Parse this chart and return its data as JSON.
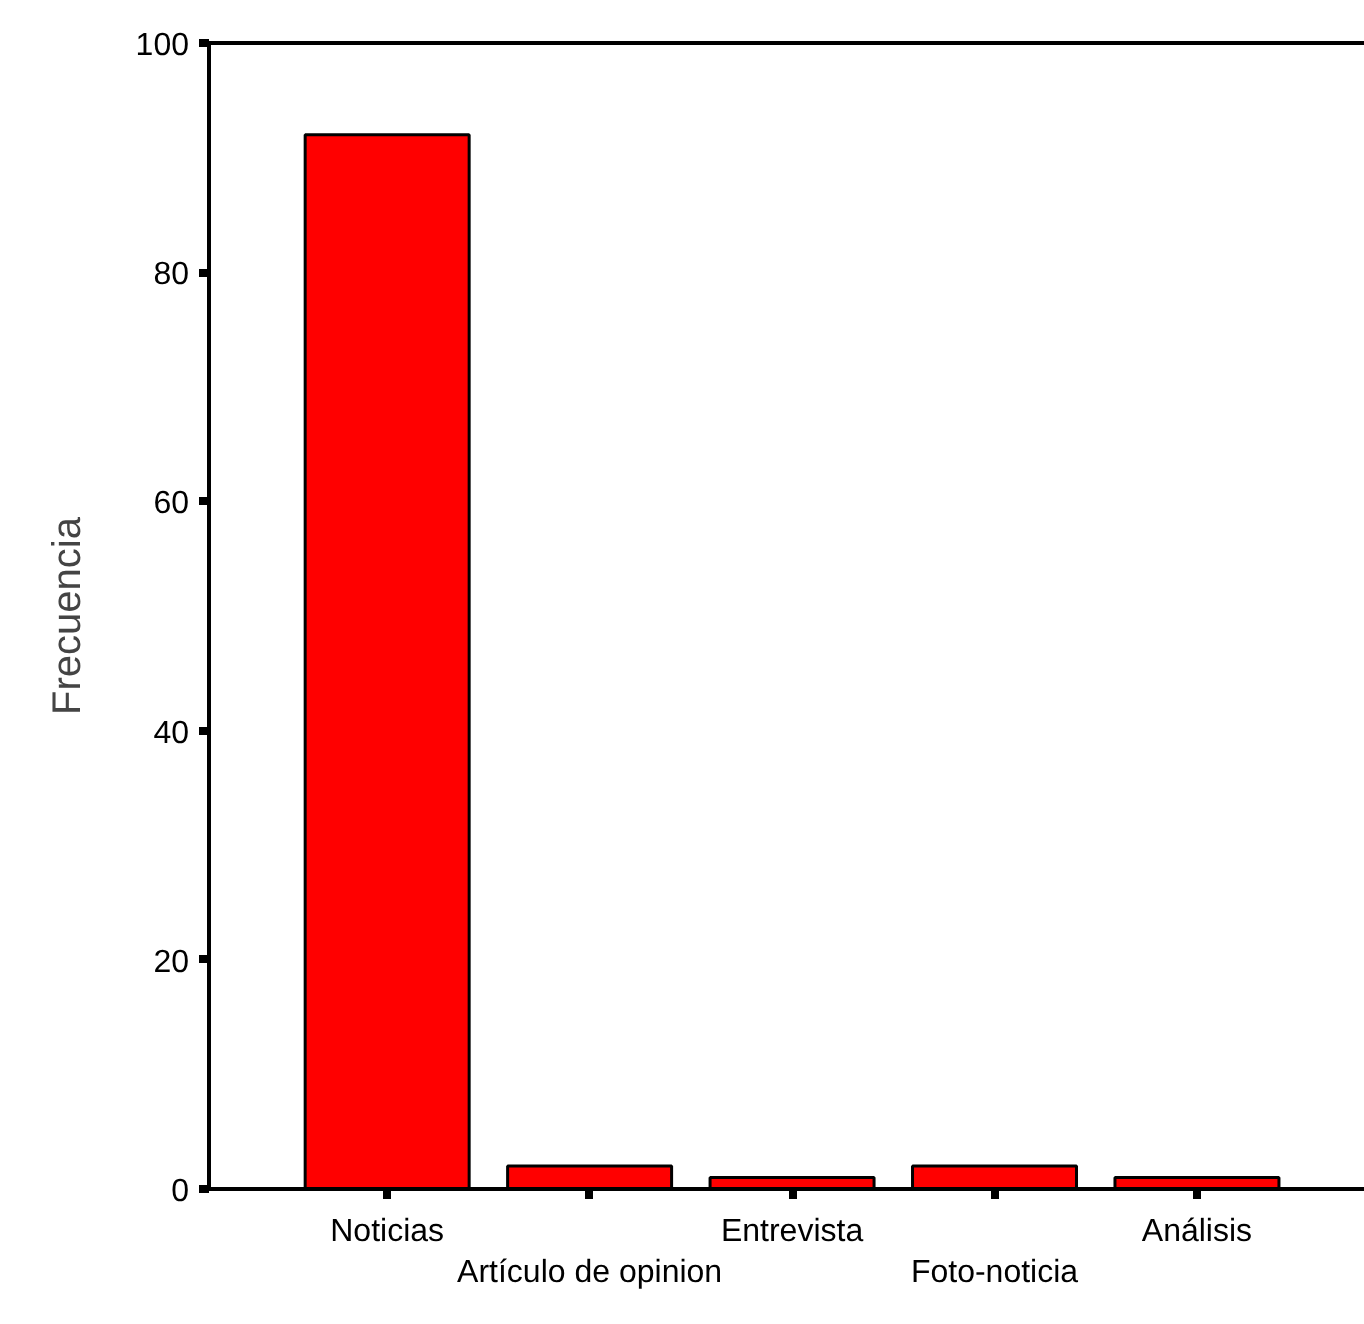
{
  "chart_data": {
    "type": "bar",
    "ylabel": "Frecuencia",
    "categories": [
      "Noticias",
      "Artículo de opinion",
      "Entrevista",
      "Foto-noticia",
      "Análisis"
    ],
    "values": [
      92,
      2,
      1,
      2,
      1
    ],
    "color": "#ff0000",
    "ylim": [
      0,
      100
    ],
    "yticks": [
      0,
      20,
      40,
      60,
      80,
      100
    ],
    "grid": false
  }
}
